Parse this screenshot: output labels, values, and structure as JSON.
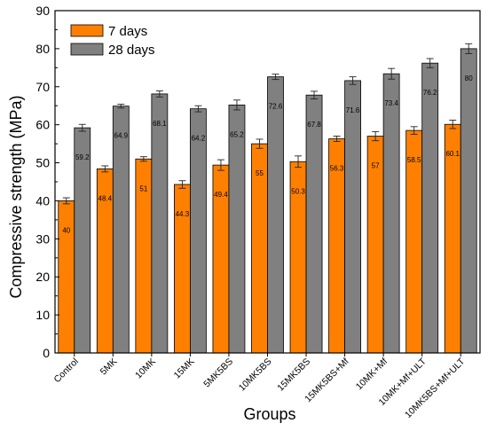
{
  "chart_data": {
    "type": "bar",
    "categories": [
      "Control",
      "5MK",
      "10MK",
      "15MK",
      "5MK5BS",
      "10MK5BS",
      "15MK5BS",
      "15MK5BS+Mf",
      "10MK+Mf",
      "10MK+Mf+ULT",
      "10MK5BS+Mf+ULT"
    ],
    "series": [
      {
        "name": "7 days",
        "color": "#ff8000",
        "values": [
          40,
          48.4,
          51,
          44.3,
          49.4,
          55,
          50.3,
          56.3,
          57,
          58.5,
          60.1
        ],
        "labels": [
          "40",
          "48.4",
          "51",
          "44.3",
          "49.4",
          "55",
          "50.3",
          "56.3",
          "57",
          "58.5",
          "60.1"
        ],
        "errors": [
          0.8,
          0.8,
          0.6,
          1.0,
          1.4,
          1.2,
          1.5,
          0.7,
          1.2,
          1.0,
          1.1
        ]
      },
      {
        "name": "28 days",
        "color": "#808080",
        "values": [
          59.2,
          64.9,
          68.1,
          64.2,
          65.2,
          72.6,
          67.8,
          71.6,
          73.4,
          76.2,
          80
        ],
        "labels": [
          "59.2",
          "64.9",
          "68.1",
          "64.2",
          "65.2",
          "72.6",
          "67.8",
          "71.6",
          "73.4",
          "76.2",
          "80"
        ],
        "errors": [
          0.9,
          0.5,
          0.8,
          0.8,
          1.3,
          0.7,
          1.0,
          1.0,
          1.4,
          1.2,
          1.3
        ]
      }
    ],
    "xlabel": "Groups",
    "ylabel": "Compressive strength (MPa)",
    "ylim": [
      0,
      90
    ],
    "yticks": [
      0,
      10,
      20,
      30,
      40,
      50,
      60,
      70,
      80,
      90
    ],
    "grid": false,
    "legend_position": "top-left"
  }
}
